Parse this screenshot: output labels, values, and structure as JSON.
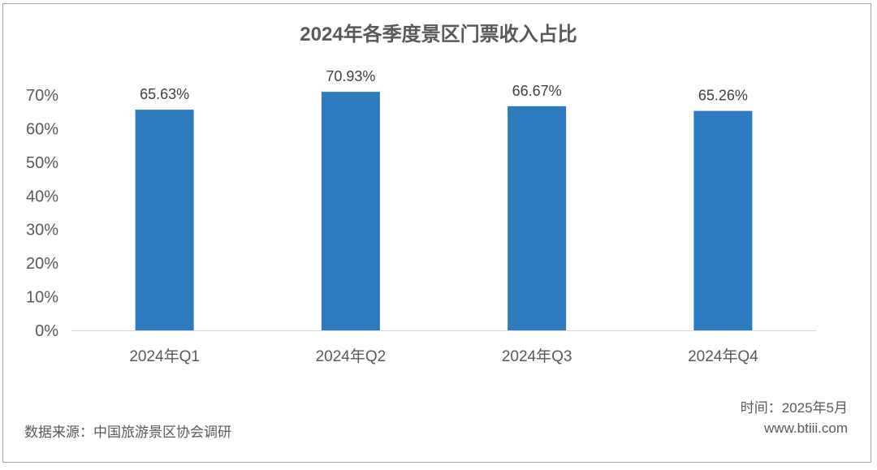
{
  "chart_data": {
    "type": "bar",
    "title": "2024年各季度景区门票收入占比",
    "categories": [
      "2024年Q1",
      "2024年Q2",
      "2024年Q3",
      "2024年Q4"
    ],
    "values": [
      65.63,
      70.93,
      66.67,
      65.26
    ],
    "data_labels": [
      "65.63%",
      "70.93%",
      "66.67%",
      "65.26%"
    ],
    "yticks": [
      "0%",
      "10%",
      "20%",
      "30%",
      "40%",
      "50%",
      "60%",
      "70%"
    ],
    "ylim": [
      0,
      70
    ],
    "grid": false,
    "bar_color": "#2e7abf"
  },
  "footer": {
    "source": "数据来源：中国旅游景区协会调研",
    "time": "时间：2025年5月",
    "site": "www.btiii.com"
  }
}
